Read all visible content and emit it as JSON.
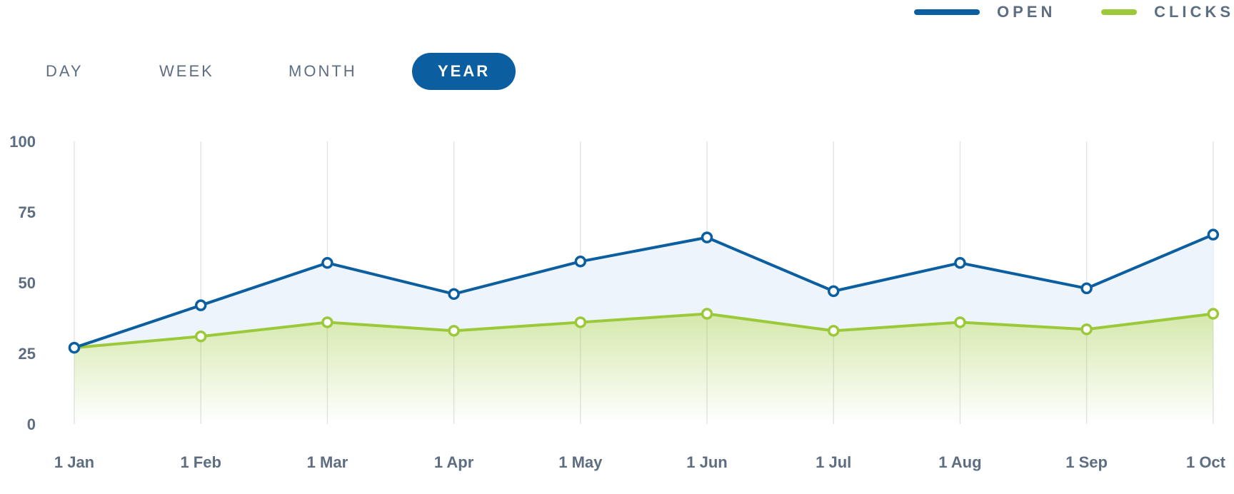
{
  "legend": [
    {
      "label": "OPEN",
      "color": "#0b5fa1"
    },
    {
      "label": "CLICKS",
      "color": "#9bc93a"
    }
  ],
  "tabs": [
    {
      "label": "DAY",
      "active": false
    },
    {
      "label": "WEEK",
      "active": false
    },
    {
      "label": "MONTH",
      "active": false
    },
    {
      "label": "YEAR",
      "active": true
    }
  ],
  "chart_data": {
    "type": "area",
    "x": [
      "1 Jan",
      "1 Feb",
      "1 Mar",
      "1 Apr",
      "1 May",
      "1 Jun",
      "1 Jul",
      "1 Aug",
      "1 Sep",
      "1 Oct"
    ],
    "yticks": [
      0,
      25,
      50,
      75,
      100
    ],
    "ylim": [
      0,
      100
    ],
    "grid": "vertical",
    "legend_position": "top-right",
    "series": [
      {
        "name": "OPEN",
        "color": "#0b5fa1",
        "fill": "#eef4fc",
        "values": [
          27,
          42,
          57,
          46,
          57.5,
          66,
          47,
          57,
          48,
          67
        ]
      },
      {
        "name": "CLICKS",
        "color": "#9bc93a",
        "fill": "#9bc93a",
        "values": [
          27,
          31,
          36,
          33,
          36,
          39,
          33,
          36,
          33.5,
          39
        ]
      }
    ]
  }
}
